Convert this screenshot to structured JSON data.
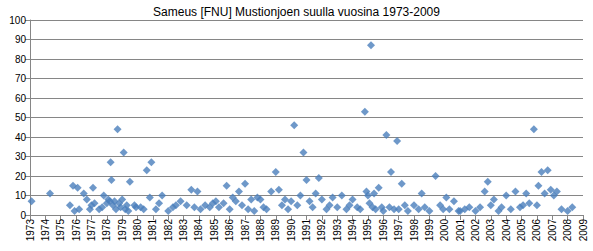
{
  "chart_data": {
    "type": "scatter",
    "title": "Sameus [FNU] Mustionjoen suulla vuosina 1973-2009",
    "x": [
      1973.1,
      1974.3,
      1975.6,
      1975.8,
      1975.9,
      1976.1,
      1976.2,
      1976.5,
      1976.7,
      1976.9,
      1977.0,
      1977.1,
      1977.2,
      1977.5,
      1977.7,
      1977.8,
      1978.0,
      1978.1,
      1978.2,
      1978.25,
      1978.3,
      1978.4,
      1978.5,
      1978.6,
      1978.7,
      1978.8,
      1978.9,
      1979.0,
      1979.1,
      1979.2,
      1979.3,
      1979.4,
      1979.5,
      1979.8,
      1979.9,
      1980.2,
      1980.4,
      1980.6,
      1980.8,
      1980.9,
      1981.2,
      1981.4,
      1981.6,
      1982.0,
      1982.3,
      1982.5,
      1982.8,
      1983.2,
      1983.5,
      1983.7,
      1983.9,
      1984.1,
      1984.4,
      1984.7,
      1984.9,
      1985.1,
      1985.3,
      1985.6,
      1985.8,
      1986.0,
      1986.2,
      1986.4,
      1986.6,
      1986.8,
      1987.0,
      1987.2,
      1987.4,
      1987.6,
      1987.8,
      1988.0,
      1988.2,
      1988.4,
      1988.7,
      1989.0,
      1989.2,
      1989.4,
      1989.6,
      1989.8,
      1990.0,
      1990.2,
      1990.4,
      1990.6,
      1990.8,
      1991.0,
      1991.2,
      1991.4,
      1991.6,
      1991.8,
      1992.0,
      1992.3,
      1992.5,
      1992.7,
      1993.0,
      1993.3,
      1993.6,
      1993.8,
      1994.0,
      1994.3,
      1994.5,
      1994.8,
      1994.9,
      1995.0,
      1995.1,
      1995.2,
      1995.3,
      1995.4,
      1995.5,
      1995.7,
      1995.9,
      1996.0,
      1996.2,
      1996.4,
      1996.5,
      1996.7,
      1996.9,
      1997.0,
      1997.2,
      1997.4,
      1997.6,
      1998.0,
      1998.3,
      1998.5,
      1998.7,
      1999.0,
      1999.4,
      1999.7,
      1999.9,
      2000.1,
      2000.3,
      2000.6,
      2000.9,
      2001.0,
      2001.3,
      2001.6,
      2002.0,
      2002.3,
      2002.6,
      2002.8,
      2003.0,
      2003.2,
      2003.5,
      2003.7,
      2004.0,
      2004.3,
      2004.6,
      2004.9,
      2005.1,
      2005.3,
      2005.5,
      2005.8,
      2006.0,
      2006.1,
      2006.3,
      2006.5,
      2006.7,
      2006.9,
      2007.1,
      2007.3,
      2007.6,
      2008.0,
      2008.3
    ],
    "values": [
      7,
      11,
      5,
      15,
      2,
      14,
      3,
      11,
      8,
      3,
      5,
      14,
      6,
      3,
      4,
      10,
      6,
      8,
      7,
      27,
      18,
      5,
      7,
      3,
      44,
      6,
      4,
      8,
      32,
      3,
      5,
      2,
      17,
      5,
      4,
      4,
      3,
      23,
      9,
      27,
      3,
      6,
      10,
      2,
      4,
      5,
      7,
      5,
      13,
      4,
      12,
      3,
      5,
      4,
      6,
      7,
      4,
      6,
      15,
      3,
      9,
      7,
      12,
      5,
      16,
      3,
      8,
      2,
      9,
      8,
      4,
      3,
      12,
      22,
      13,
      5,
      8,
      3,
      7,
      46,
      5,
      10,
      32,
      18,
      7,
      4,
      11,
      19,
      8,
      3,
      5,
      9,
      4,
      10,
      3,
      5,
      8,
      4,
      3,
      53,
      12,
      10,
      6,
      87,
      4,
      11,
      3,
      14,
      4,
      2,
      41,
      4,
      22,
      3,
      38,
      3,
      16,
      5,
      2,
      5,
      3,
      11,
      4,
      2,
      20,
      5,
      3,
      9,
      3,
      7,
      2,
      2,
      3,
      4,
      2,
      4,
      12,
      17,
      5,
      8,
      2,
      4,
      10,
      3,
      12,
      4,
      5,
      11,
      6,
      44,
      5,
      15,
      22,
      11,
      23,
      13,
      10,
      12,
      3,
      2,
      4
    ],
    "color": "#4a7ebb",
    "marker": "diamond",
    "xlim": [
      1973,
      2009
    ],
    "xticks": [
      1973,
      1974,
      1975,
      1976,
      1977,
      1978,
      1979,
      1980,
      1981,
      1982,
      1983,
      1984,
      1985,
      1986,
      1987,
      1988,
      1989,
      1990,
      1991,
      1992,
      1993,
      1994,
      1995,
      1996,
      1997,
      1998,
      1999,
      2000,
      2001,
      2002,
      2003,
      2004,
      2005,
      2006,
      2007,
      2008,
      2009
    ],
    "ylim": [
      0,
      100
    ],
    "yticks": [
      0,
      10,
      20,
      30,
      40,
      50,
      60,
      70,
      80,
      90,
      100
    ],
    "grid": true
  }
}
